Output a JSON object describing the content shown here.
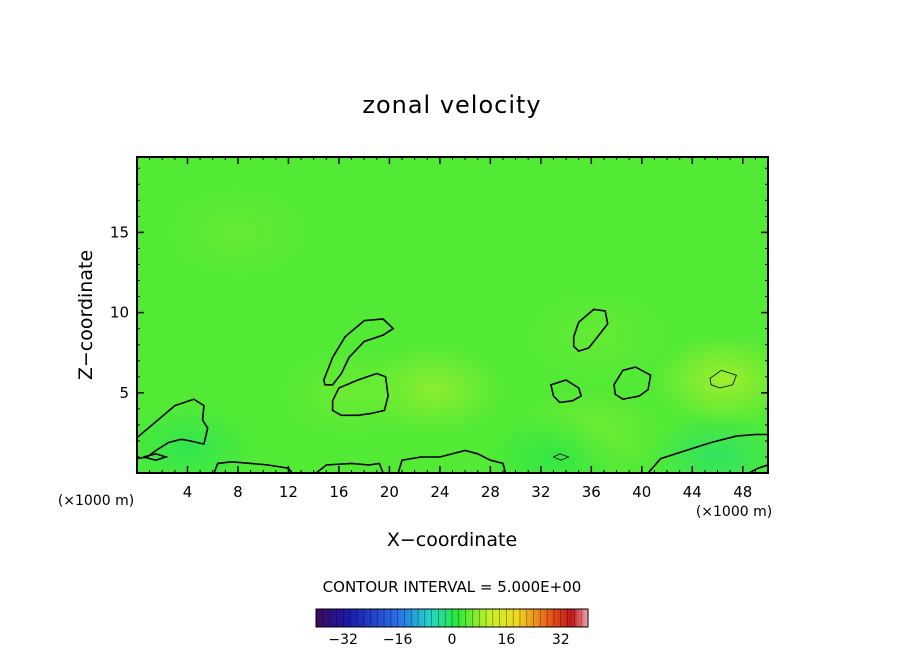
{
  "chart_data": {
    "type": "heatmap",
    "title": "zonal velocity",
    "xlabel": "X−coordinate",
    "ylabel": "Z−coordinate",
    "x_unit_left": "(×1000 m)",
    "x_unit_right": "(×1000 m)",
    "xlim": [
      0,
      50
    ],
    "ylim": [
      0,
      19.7
    ],
    "x_ticks": [
      4,
      8,
      12,
      16,
      20,
      24,
      28,
      32,
      36,
      40,
      44,
      48
    ],
    "y_ticks": [
      5,
      10,
      15
    ],
    "contour_interval_label": "CONTOUR INTERVAL = 5.000E+00",
    "colorbar": {
      "min": -40,
      "max": 40,
      "tick_values": [
        -32,
        -16,
        0,
        16,
        32
      ],
      "tick_labels": [
        "−32",
        "−16",
        "0",
        "16",
        "32"
      ]
    },
    "field": {
      "description": "mostly near-zero velocity (green) with weak positive maxima",
      "background_value": 2,
      "blobs": [
        {
          "x": 23.5,
          "y": 5.2,
          "value": 5.5
        },
        {
          "x": 46.5,
          "y": 5.8,
          "value": 6.5
        },
        {
          "x": 17,
          "y": 5.0,
          "value": 3.5
        },
        {
          "x": 36.5,
          "y": 8.5,
          "value": 3.0
        },
        {
          "x": 36,
          "y": 2.5,
          "value": 4.0
        },
        {
          "x": 8,
          "y": 15,
          "value": 3.0
        },
        {
          "x": 46,
          "y": 1.0,
          "value": -2.0
        },
        {
          "x": 4,
          "y": 1.5,
          "value": -1.0
        },
        {
          "x": 33,
          "y": 1.0,
          "value": -0.5
        }
      ]
    },
    "contours": [
      {
        "level": 0,
        "points": [
          [
            0,
            2.2
          ],
          [
            1.5,
            3.2
          ],
          [
            3,
            4.2
          ],
          [
            4.5,
            4.6
          ],
          [
            5.3,
            4.2
          ],
          [
            5.2,
            3.3
          ],
          [
            5.6,
            2.8
          ],
          [
            5.3,
            1.8
          ],
          [
            4.2,
            2.0
          ],
          [
            3.5,
            2.1
          ],
          [
            2.5,
            1.9
          ],
          [
            1.5,
            1.4
          ],
          [
            0.8,
            1.0
          ],
          [
            0,
            0.9
          ]
        ]
      },
      {
        "level": 0,
        "points": [
          [
            0.5,
            1.0
          ],
          [
            1.5,
            1.2
          ],
          [
            2.3,
            1.0
          ],
          [
            1.5,
            0.8
          ]
        ]
      },
      {
        "level": 0,
        "points": [
          [
            6.1,
            0
          ],
          [
            6.4,
            0.6
          ],
          [
            7.5,
            0.7
          ],
          [
            9.0,
            0.6
          ],
          [
            10.4,
            0.5
          ],
          [
            12.0,
            0.3
          ],
          [
            12.3,
            0
          ]
        ]
      },
      {
        "level": 0,
        "points": [
          [
            14.2,
            0
          ],
          [
            15.0,
            0.5
          ],
          [
            17.0,
            0.6
          ],
          [
            18.4,
            0.5
          ],
          [
            19.2,
            0.6
          ],
          [
            19.5,
            0
          ]
        ]
      },
      {
        "level": 0,
        "points": [
          [
            14.8,
            5.8
          ],
          [
            15.5,
            7.2
          ],
          [
            16.5,
            8.5
          ],
          [
            18.0,
            9.5
          ],
          [
            19.5,
            9.6
          ],
          [
            20.3,
            9.0
          ],
          [
            19.5,
            8.6
          ],
          [
            18.0,
            8.2
          ],
          [
            16.8,
            7.2
          ],
          [
            16.2,
            6.2
          ],
          [
            15.5,
            5.5
          ],
          [
            14.9,
            5.5
          ]
        ]
      },
      {
        "level": 0,
        "points": [
          [
            15.5,
            4.5
          ],
          [
            16.0,
            5.3
          ],
          [
            17.5,
            5.8
          ],
          [
            19.0,
            6.2
          ],
          [
            19.7,
            6.0
          ],
          [
            19.9,
            4.8
          ],
          [
            19.6,
            3.9
          ],
          [
            18.5,
            3.7
          ],
          [
            17.5,
            3.6
          ],
          [
            16.2,
            3.6
          ],
          [
            15.5,
            3.9
          ]
        ]
      },
      {
        "level": 0,
        "points": [
          [
            20.7,
            0
          ],
          [
            21.0,
            0.8
          ],
          [
            22.5,
            1.0
          ],
          [
            24.0,
            1.0
          ],
          [
            26.0,
            1.4
          ],
          [
            27.0,
            1.2
          ],
          [
            28.0,
            0.8
          ],
          [
            29.0,
            0.6
          ],
          [
            29.2,
            0
          ]
        ]
      },
      {
        "level": 0,
        "points": [
          [
            32.8,
            5.5
          ],
          [
            34.0,
            5.8
          ],
          [
            35.0,
            5.3
          ],
          [
            35.2,
            4.8
          ],
          [
            34.5,
            4.5
          ],
          [
            33.5,
            4.4
          ],
          [
            33.0,
            4.8
          ]
        ]
      },
      {
        "level": 0,
        "points": [
          [
            34.6,
            8.5
          ],
          [
            35.0,
            9.4
          ],
          [
            36.2,
            10.2
          ],
          [
            37.1,
            10.1
          ],
          [
            37.3,
            9.3
          ],
          [
            36.5,
            8.5
          ],
          [
            35.8,
            7.8
          ],
          [
            35.0,
            7.6
          ],
          [
            34.6,
            7.9
          ]
        ]
      },
      {
        "level": 0,
        "points": [
          [
            37.8,
            5.5
          ],
          [
            38.5,
            6.4
          ],
          [
            39.5,
            6.6
          ],
          [
            40.7,
            6.1
          ],
          [
            40.5,
            5.2
          ],
          [
            39.8,
            4.8
          ],
          [
            38.5,
            4.6
          ],
          [
            37.9,
            4.9
          ]
        ]
      },
      {
        "level": 0,
        "points": [
          [
            40.5,
            0
          ],
          [
            41.5,
            0.9
          ],
          [
            43.5,
            1.4
          ],
          [
            45.5,
            1.9
          ],
          [
            47.5,
            2.3
          ],
          [
            49.0,
            2.4
          ],
          [
            50,
            2.4
          ]
        ]
      },
      {
        "level": 0,
        "points": [
          [
            48.5,
            0
          ],
          [
            49.2,
            0.3
          ],
          [
            50,
            0.5
          ]
        ]
      },
      {
        "level": 5,
        "points": [
          [
            45.4,
            5.9
          ],
          [
            46.3,
            6.4
          ],
          [
            47.5,
            6.1
          ],
          [
            47.2,
            5.5
          ],
          [
            46.2,
            5.3
          ],
          [
            45.5,
            5.5
          ]
        ]
      },
      {
        "level": 5,
        "points": [
          [
            33.0,
            1.0
          ],
          [
            33.5,
            1.2
          ],
          [
            34.2,
            1.0
          ],
          [
            33.6,
            0.8
          ]
        ]
      }
    ]
  }
}
